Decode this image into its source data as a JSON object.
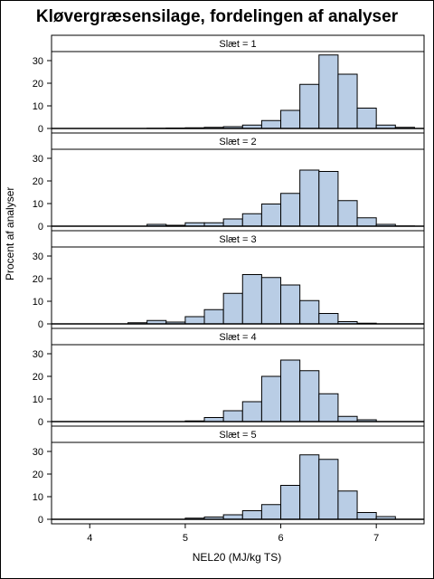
{
  "title": "Kløvergræsensilage, fordelingen af analyser",
  "chart_data": {
    "type": "bar",
    "title": "Kløvergræsensilage, fordelingen af analyser",
    "xlabel": "NEL20 (MJ/kg TS)",
    "ylabel": "Procent af analyser",
    "xlim": [
      3.6,
      7.5
    ],
    "ylim": [
      0,
      34
    ],
    "x_ticks": [
      "4",
      "5",
      "6",
      "7"
    ],
    "y_ticks": [
      "0",
      "10",
      "20",
      "30"
    ],
    "bin_edges": [
      3.6,
      3.8,
      4.0,
      4.2,
      4.4,
      4.6,
      4.8,
      5.0,
      5.2,
      5.4,
      5.6,
      5.8,
      6.0,
      6.2,
      6.4,
      6.6,
      6.8,
      7.0,
      7.2,
      7.4
    ],
    "bar_color": "#b9cde5",
    "panels": [
      {
        "label": "Slæt = 1",
        "values": [
          0,
          0,
          0,
          0,
          0,
          0.1,
          0.2,
          0.3,
          0.5,
          0.8,
          1.5,
          3.5,
          8,
          19.5,
          32.5,
          24,
          9,
          1.5,
          0.5
        ]
      },
      {
        "label": "Slæt = 2",
        "values": [
          0,
          0,
          0,
          0,
          0,
          0.8,
          0.4,
          1.5,
          1.5,
          3.2,
          5.5,
          9.8,
          14.5,
          24.8,
          24.2,
          11.3,
          3.7,
          0.8,
          0.1
        ]
      },
      {
        "label": "Slæt = 3",
        "values": [
          0,
          0,
          0,
          0,
          0.5,
          1.5,
          0.8,
          3.2,
          6.3,
          13.5,
          21.8,
          20.5,
          17.2,
          10.3,
          4.6,
          1,
          0.3,
          0,
          0
        ]
      },
      {
        "label": "Slæt = 4",
        "values": [
          0,
          0,
          0,
          0,
          0,
          0,
          0,
          0.3,
          1.8,
          4.8,
          8.8,
          20,
          27.2,
          22.5,
          12.3,
          2.3,
          0.8,
          0,
          0
        ]
      },
      {
        "label": "Slæt = 5",
        "values": [
          0,
          0,
          0,
          0,
          0,
          0,
          0,
          0.5,
          1,
          2,
          3.8,
          6.5,
          15,
          28.5,
          26.5,
          12.5,
          3,
          1.2,
          0
        ]
      }
    ]
  }
}
